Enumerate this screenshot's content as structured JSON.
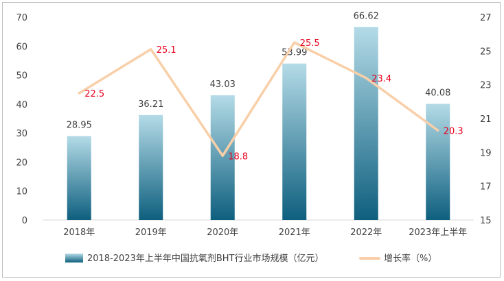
{
  "chart_data": {
    "type": "bar",
    "categories": [
      "2018年",
      "2019年",
      "2020年",
      "2021年",
      "2022年",
      "2023年上半年"
    ],
    "series": [
      {
        "name": "2018-2023年上半年中国抗氧剂BHT行业市场规模（亿元）",
        "type": "bar",
        "axis": "left",
        "values": [
          28.95,
          36.21,
          43.03,
          53.99,
          66.62,
          40.08
        ],
        "labels": [
          "28.95",
          "36.21",
          "43.03",
          "53.99",
          "66.62",
          "40.08"
        ],
        "color_top": "#b4dbe7",
        "color_bottom": "#0e5f7e"
      },
      {
        "name": "增长率（%）",
        "type": "line",
        "axis": "right",
        "values": [
          22.5,
          25.1,
          18.8,
          25.5,
          23.4,
          20.3
        ],
        "labels": [
          "22.5",
          "25.1",
          "18.8",
          "25.5",
          "23.4",
          "20.3"
        ],
        "color": "#f8cfa8",
        "label_color": "#e8001c"
      }
    ],
    "y_left": {
      "min": 0,
      "max": 70,
      "ticks": [
        "0",
        "10",
        "20",
        "30",
        "40",
        "50",
        "60",
        "70"
      ]
    },
    "y_right": {
      "min": 15,
      "max": 27,
      "ticks": [
        "15",
        "17",
        "19",
        "21",
        "23",
        "25",
        "27"
      ]
    },
    "grid": false,
    "legend_position": "bottom"
  }
}
